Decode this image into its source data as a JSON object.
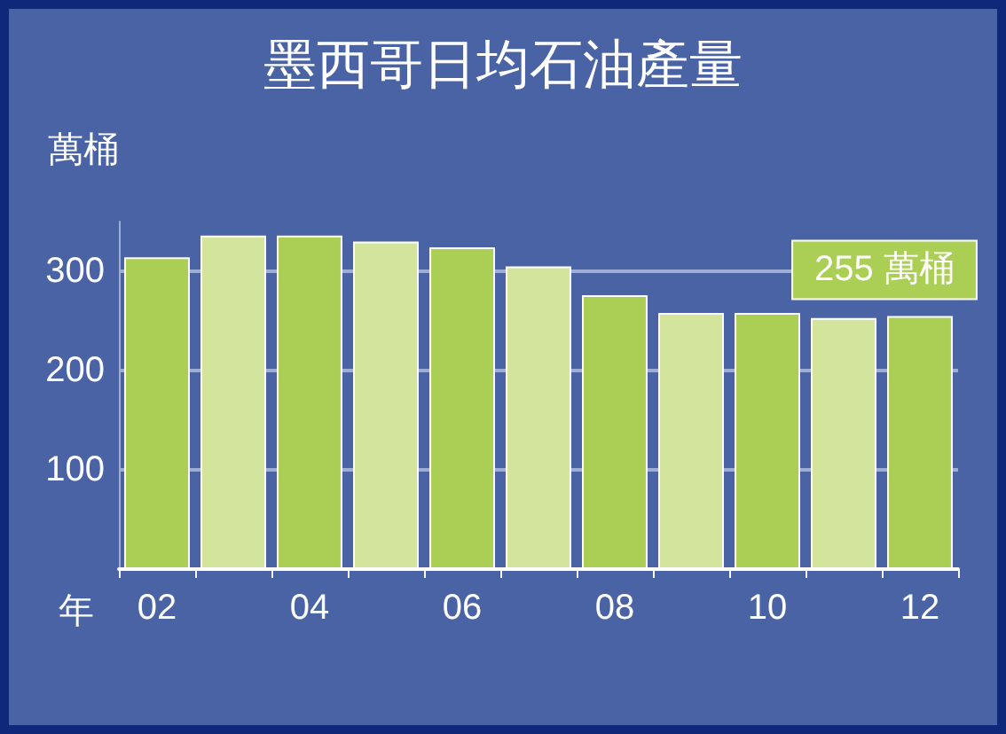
{
  "chart_data": {
    "type": "bar",
    "title": "墨西哥日均石油產量",
    "ylabel": "萬桶",
    "xlabel": "年",
    "categories": [
      "02",
      null,
      "04",
      null,
      "06",
      null,
      "08",
      null,
      "10",
      null,
      "12"
    ],
    "values": [
      314,
      336,
      336,
      330,
      324,
      305,
      276,
      258,
      258,
      253,
      255
    ],
    "colors": [
      "#abcf55",
      "#d3e59d",
      "#abcf55",
      "#d3e59d",
      "#abcf55",
      "#d3e59d",
      "#abcf55",
      "#d3e59d",
      "#abcf55",
      "#d3e59d",
      "#abcf55"
    ],
    "ylim": [
      0,
      350
    ],
    "yticks": [
      100,
      200,
      300
    ],
    "grid": "y",
    "annotations": [
      {
        "text": "255 萬桶",
        "x": "12",
        "y": 255
      }
    ]
  }
}
